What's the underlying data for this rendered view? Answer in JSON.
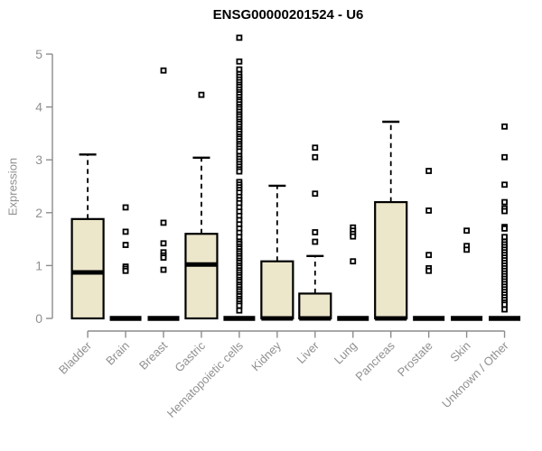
{
  "chart_data": {
    "type": "boxplot",
    "title": "ENSG00000201524 - U6",
    "ylabel": "Expression",
    "xlabel": "",
    "ylim": [
      0,
      5.4
    ],
    "yticks": [
      0,
      1,
      2,
      3,
      4,
      5
    ],
    "grid": false,
    "legend": "none",
    "categories": [
      "Bladder",
      "Brain",
      "Breast",
      "Gastric",
      "Hematopoietic cells",
      "Kidney",
      "Liver",
      "Lung",
      "Pancreas",
      "Prostate",
      "Skin",
      "Unknown / Other"
    ],
    "series": [
      {
        "name": "Bladder",
        "low": 0,
        "q1": 0,
        "median": 0.87,
        "q3": 1.88,
        "high": 3.1,
        "outliers": []
      },
      {
        "name": "Brain",
        "low": 0,
        "q1": 0,
        "median": 0,
        "q3": 0,
        "high": 0,
        "outliers": [
          2.1,
          1.64,
          1.39,
          0.98,
          0.94,
          0.9
        ]
      },
      {
        "name": "Breast",
        "low": 0,
        "q1": 0,
        "median": 0,
        "q3": 0,
        "high": 0,
        "outliers": [
          4.69,
          1.81,
          1.42,
          1.25,
          1.19,
          1.15,
          0.92
        ]
      },
      {
        "name": "Gastric",
        "low": 0,
        "q1": 0,
        "median": 1.02,
        "q3": 1.6,
        "high": 3.04,
        "outliers": [
          4.23
        ]
      },
      {
        "name": "Hematopoietic cells",
        "low": 0,
        "q1": 0,
        "median": 0,
        "q3": 0,
        "high": 0,
        "outliers": [
          5.31,
          4.86,
          4.71,
          4.62,
          4.57,
          4.52,
          4.47,
          4.42,
          4.38,
          4.33,
          4.28,
          4.24,
          4.19,
          4.14,
          4.1,
          4.05,
          4.0,
          3.96,
          3.91,
          3.86,
          3.82,
          3.77,
          3.72,
          3.68,
          3.63,
          3.58,
          3.54,
          3.49,
          3.44,
          3.4,
          3.35,
          3.3,
          3.26,
          3.21,
          3.16,
          3.07,
          3.02,
          2.97,
          2.92,
          2.87,
          2.82,
          2.78,
          2.58,
          2.53,
          2.48,
          2.43,
          2.38,
          2.3,
          2.24,
          2.18,
          2.1,
          2.02,
          1.94,
          1.86,
          1.78,
          1.7,
          1.62,
          1.54,
          1.45,
          1.41,
          1.36,
          1.32,
          1.27,
          1.23,
          1.18,
          1.14,
          1.09,
          1.05,
          1.0,
          0.96,
          0.91,
          0.87,
          0.82,
          0.78,
          0.73,
          0.69,
          0.64,
          0.6,
          0.55,
          0.51,
          0.46,
          0.42,
          0.37,
          0.33,
          0.28,
          0.24,
          0.15
        ]
      },
      {
        "name": "Kidney",
        "low": 0,
        "q1": 0,
        "median": 0,
        "q3": 1.08,
        "high": 2.51,
        "outliers": []
      },
      {
        "name": "Liver",
        "low": 0,
        "q1": 0,
        "median": 0,
        "q3": 0.47,
        "high": 1.18,
        "outliers": [
          3.23,
          3.05,
          2.36,
          1.63,
          1.45
        ]
      },
      {
        "name": "Lung",
        "low": 0,
        "q1": 0,
        "median": 0,
        "q3": 0,
        "high": 0,
        "outliers": [
          1.72,
          1.66,
          1.6,
          1.55,
          1.08
        ]
      },
      {
        "name": "Pancreas",
        "low": 0,
        "q1": 0,
        "median": 0,
        "q3": 2.2,
        "high": 3.72,
        "outliers": []
      },
      {
        "name": "Prostate",
        "low": 0,
        "q1": 0,
        "median": 0,
        "q3": 0,
        "high": 0,
        "outliers": [
          2.79,
          2.04,
          1.2,
          0.95,
          0.9
        ]
      },
      {
        "name": "Skin",
        "low": 0,
        "q1": 0,
        "median": 0,
        "q3": 0,
        "high": 0,
        "outliers": [
          1.66,
          1.37,
          1.3
        ]
      },
      {
        "name": "Unknown / Other",
        "low": 0,
        "q1": 0,
        "median": 0,
        "q3": 0,
        "high": 0,
        "outliers": [
          3.63,
          3.05,
          2.53,
          2.2,
          2.08,
          2.03,
          1.73,
          1.7,
          1.54,
          1.45,
          1.4,
          1.35,
          1.3,
          1.25,
          1.2,
          1.15,
          1.1,
          1.05,
          1.0,
          0.95,
          0.9,
          0.85,
          0.8,
          0.75,
          0.7,
          0.65,
          0.6,
          0.55,
          0.5,
          0.45,
          0.4,
          0.35,
          0.3,
          0.26,
          0.17
        ]
      }
    ],
    "colors": {
      "box_fill": "#ECE6CA",
      "box_stroke": "#000000",
      "median": "#000000",
      "whisker": "#000000",
      "outlier_stroke": "#000000",
      "outlier_fill": "#ffffff",
      "axis": "#8c8c8c",
      "tick_label": "#909090",
      "title": "#000000"
    }
  }
}
